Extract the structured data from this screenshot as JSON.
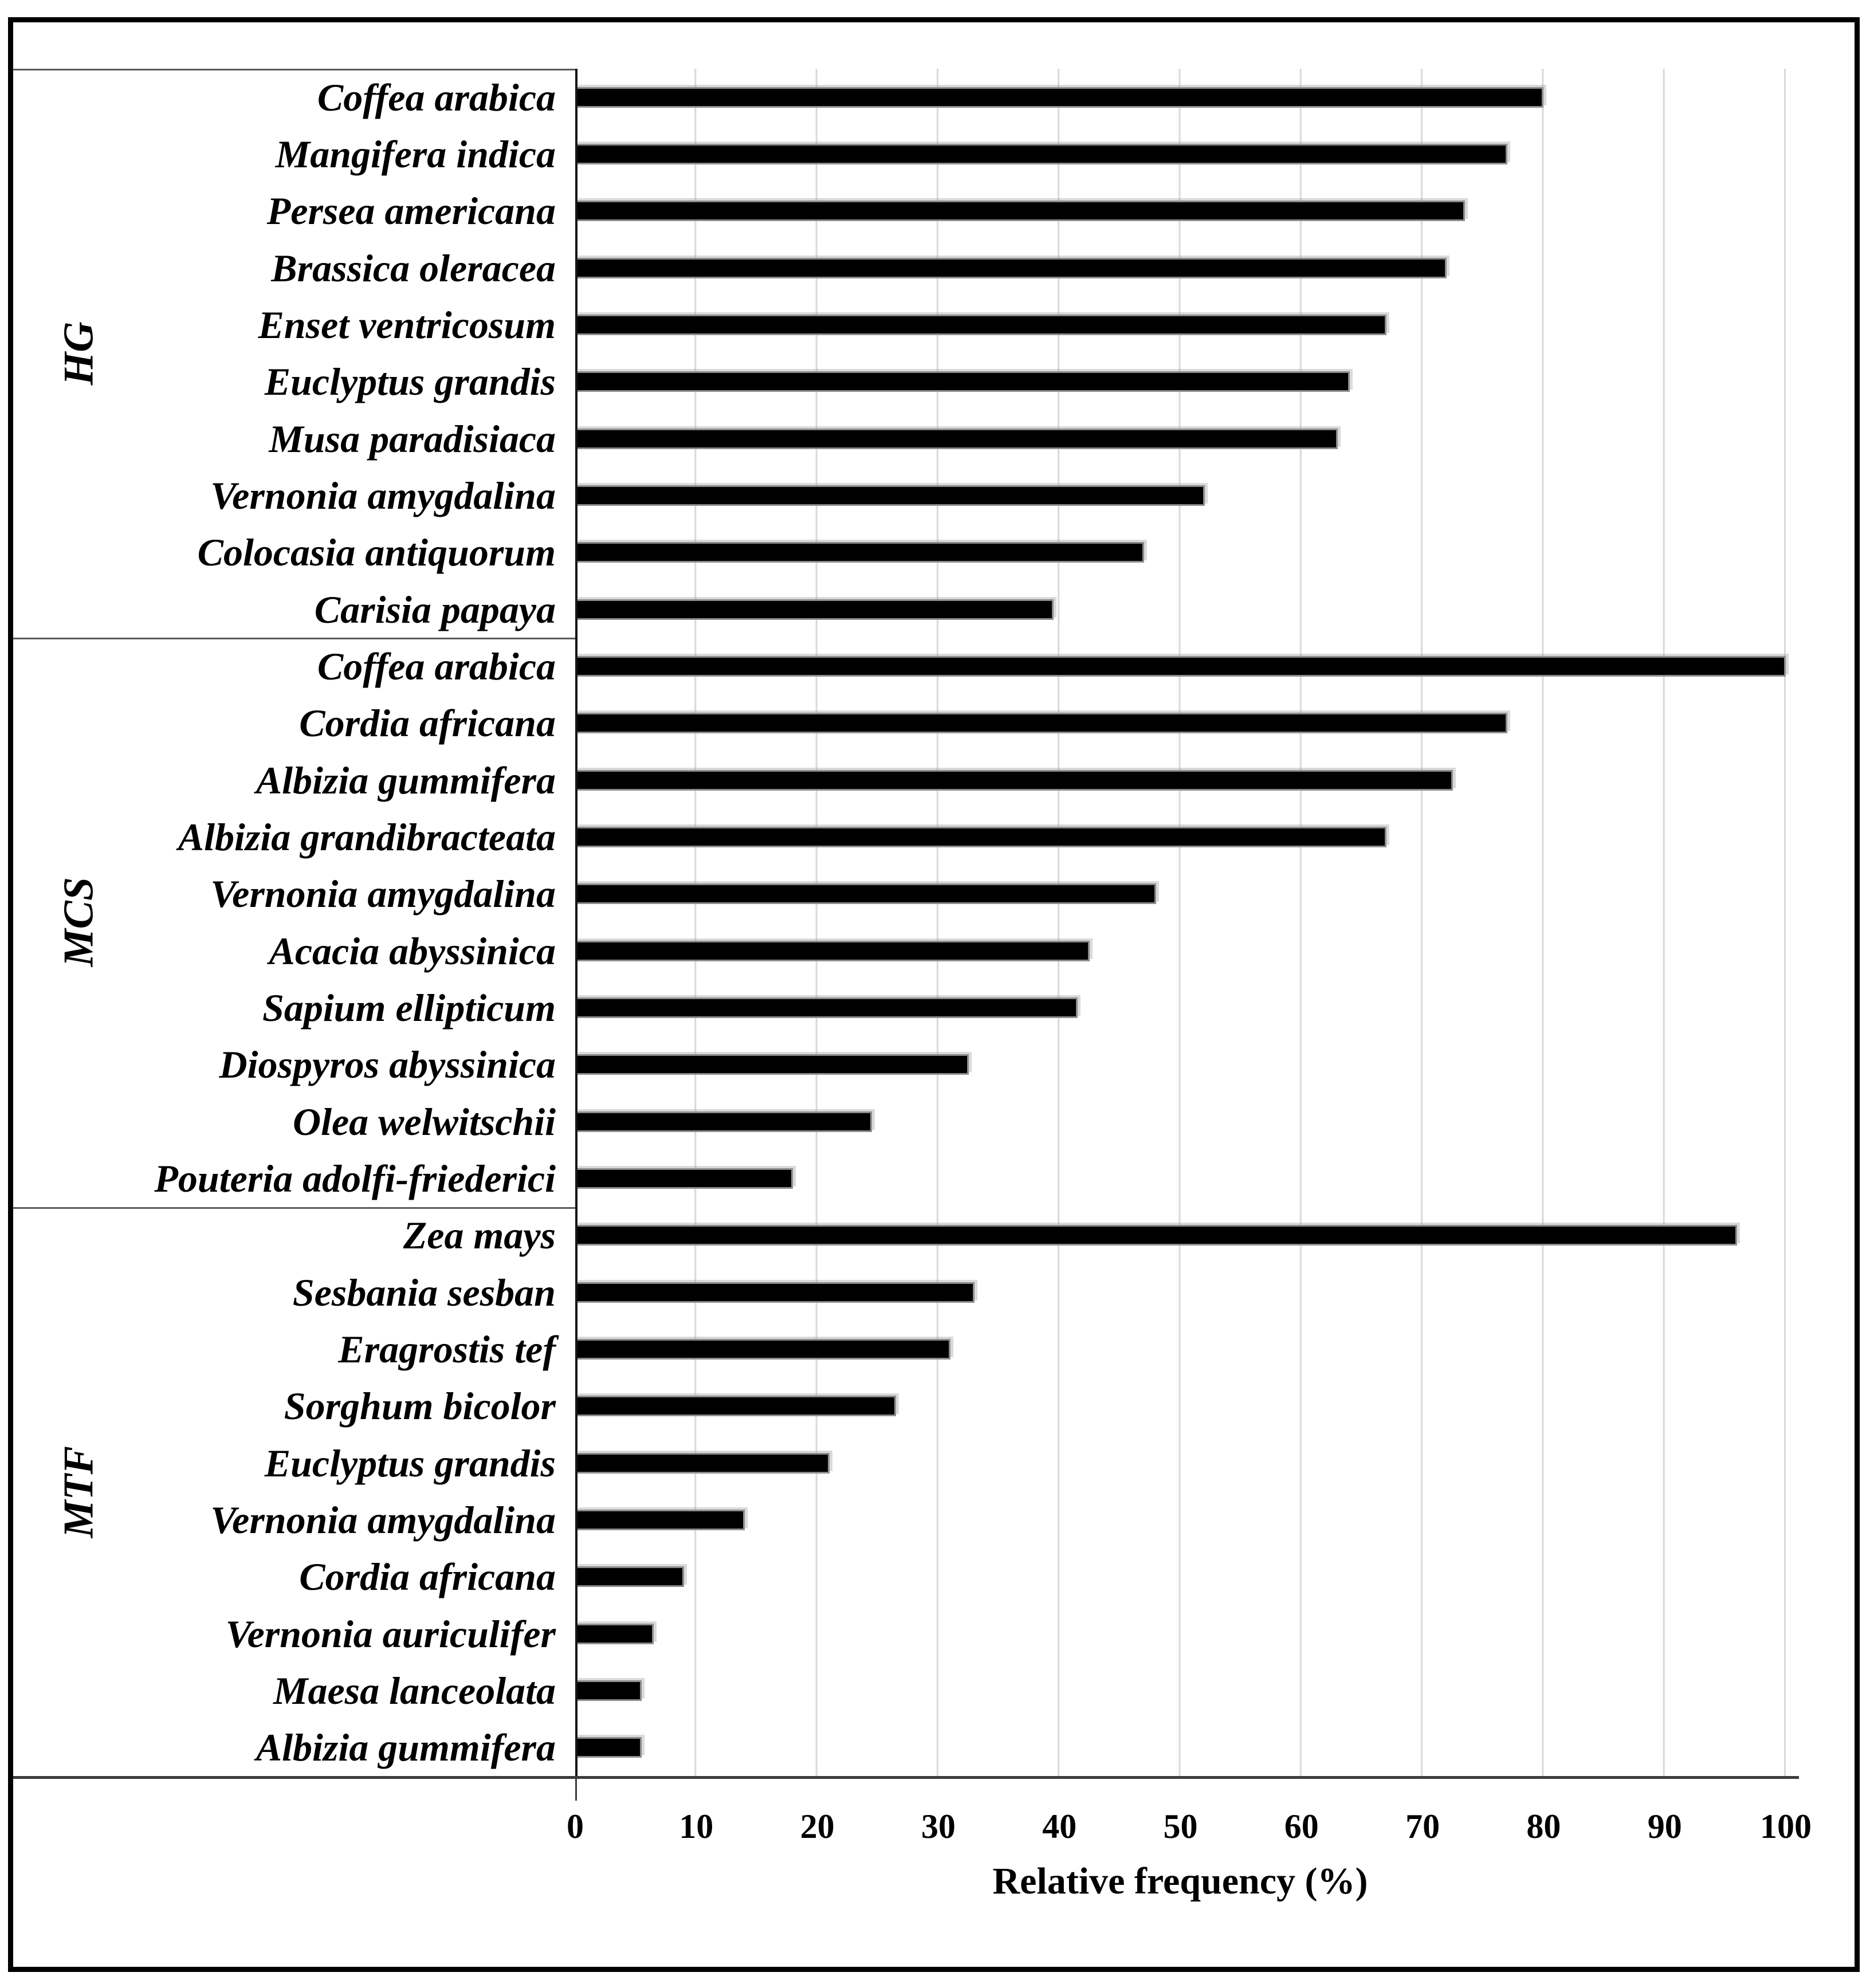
{
  "chart_data": {
    "type": "bar",
    "orientation": "horizontal",
    "title": "",
    "xlabel": "Relative frequency (%)",
    "ylabel": "",
    "xlim": [
      0,
      100
    ],
    "x_ticks": [
      0,
      10,
      20,
      30,
      40,
      50,
      60,
      70,
      80,
      90,
      100
    ],
    "grid": "vertical gridlines every 10, light gray",
    "legend": "none",
    "bar_color": "#000000",
    "bar_edge_color": "#8c8c8c",
    "gridline_color": "#d9d9d9",
    "frame_color": "#000000",
    "groups": [
      {
        "name": "HG",
        "items": [
          {
            "label": "Coffea arabica",
            "value": 80
          },
          {
            "label": "Mangifera indica",
            "value": 77
          },
          {
            "label": "Persea americana",
            "value": 73.5
          },
          {
            "label": "Brassica oleracea",
            "value": 72
          },
          {
            "label": "Enset ventricosum",
            "value": 67
          },
          {
            "label": "Euclyptus grandis",
            "value": 64
          },
          {
            "label": "Musa paradisiaca",
            "value": 63
          },
          {
            "label": "Vernonia amygdalina",
            "value": 52
          },
          {
            "label": "Colocasia antiquorum",
            "value": 47
          },
          {
            "label": "Carisia papaya",
            "value": 39.5
          }
        ]
      },
      {
        "name": "MCS",
        "items": [
          {
            "label": "Coffea arabica",
            "value": 100
          },
          {
            "label": "Cordia africana",
            "value": 77
          },
          {
            "label": "Albizia gummifera",
            "value": 72.5
          },
          {
            "label": "Albizia grandibracteata",
            "value": 67
          },
          {
            "label": "Vernonia amygdalina",
            "value": 48
          },
          {
            "label": "Acacia abyssinica",
            "value": 42.5
          },
          {
            "label": "Sapium ellipticum",
            "value": 41.5
          },
          {
            "label": "Diospyros abyssinica",
            "value": 32.5
          },
          {
            "label": "Olea welwitschii",
            "value": 24.5
          },
          {
            "label": "Pouteria adolfi-friederici",
            "value": 18
          }
        ]
      },
      {
        "name": "MTF",
        "items": [
          {
            "label": "Zea mays",
            "value": 96
          },
          {
            "label": "Sesbania sesban",
            "value": 33
          },
          {
            "label": "Eragrostis tef",
            "value": 31
          },
          {
            "label": "Sorghum bicolor",
            "value": 26.5
          },
          {
            "label": "Euclyptus grandis",
            "value": 21
          },
          {
            "label": "Vernonia amygdalina",
            "value": 14
          },
          {
            "label": "Cordia africana",
            "value": 9
          },
          {
            "label": "Vernonia auriculifer",
            "value": 6.5
          },
          {
            "label": "Maesa lanceolata",
            "value": 5.5
          },
          {
            "label": "Albizia gummifera",
            "value": 5.5
          }
        ]
      }
    ]
  }
}
